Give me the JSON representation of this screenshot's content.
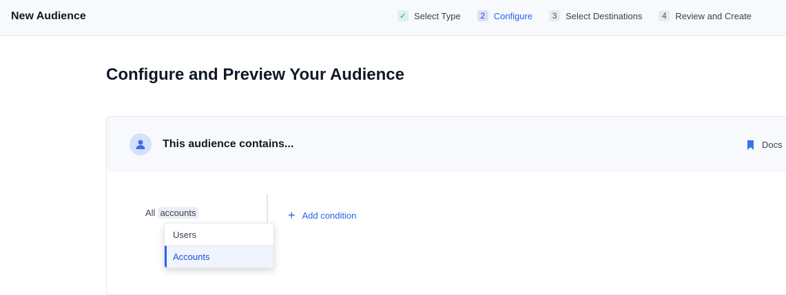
{
  "header": {
    "title": "New Audience",
    "steps": [
      {
        "badge": "✓",
        "label": "Select Type",
        "state": "done"
      },
      {
        "badge": "2",
        "label": "Configure",
        "state": "active"
      },
      {
        "badge": "3",
        "label": "Select Destinations",
        "state": "pending"
      },
      {
        "badge": "4",
        "label": "Review and Create",
        "state": "pending"
      }
    ]
  },
  "page": {
    "title": "Configure and Preview Your Audience"
  },
  "card": {
    "title": "This audience contains...",
    "docs": "Docs",
    "icon": "user-icon",
    "all_label": "All",
    "entity": "accounts",
    "add_condition": "Add condition",
    "dropdown": {
      "options": [
        "Users",
        "Accounts"
      ],
      "selected": "Accounts"
    }
  },
  "colors": {
    "accent": "#2563eb"
  }
}
